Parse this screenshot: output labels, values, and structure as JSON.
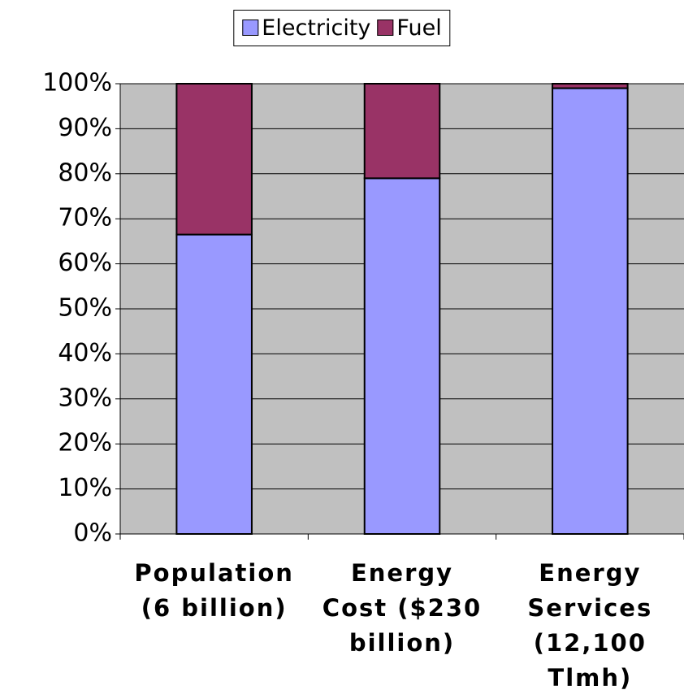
{
  "chart_data": {
    "type": "stacked_bar",
    "categories": [
      "Population (6 billion)",
      "Energy Cost ($230 billion)",
      "Energy Services (12,100 Tlmh)"
    ],
    "series": [
      {
        "name": "Electricity",
        "color": "#9999ff",
        "values": [
          66.5,
          79,
          99
        ]
      },
      {
        "name": "Fuel",
        "color": "#993366",
        "values": [
          33.5,
          21,
          1
        ]
      }
    ],
    "ylim": [
      0,
      100
    ],
    "yticks": [
      {
        "value": 0,
        "label": "0%"
      },
      {
        "value": 10,
        "label": "10%"
      },
      {
        "value": 20,
        "label": "20%"
      },
      {
        "value": 30,
        "label": "30%"
      },
      {
        "value": 40,
        "label": "40%"
      },
      {
        "value": 50,
        "label": "50%"
      },
      {
        "value": 60,
        "label": "60%"
      },
      {
        "value": 70,
        "label": "70%"
      },
      {
        "value": 80,
        "label": "80%"
      },
      {
        "value": 90,
        "label": "90%"
      },
      {
        "value": 100,
        "label": "100%"
      }
    ],
    "grid": true,
    "plot_background": "#c0c0c0",
    "legend": "top"
  }
}
